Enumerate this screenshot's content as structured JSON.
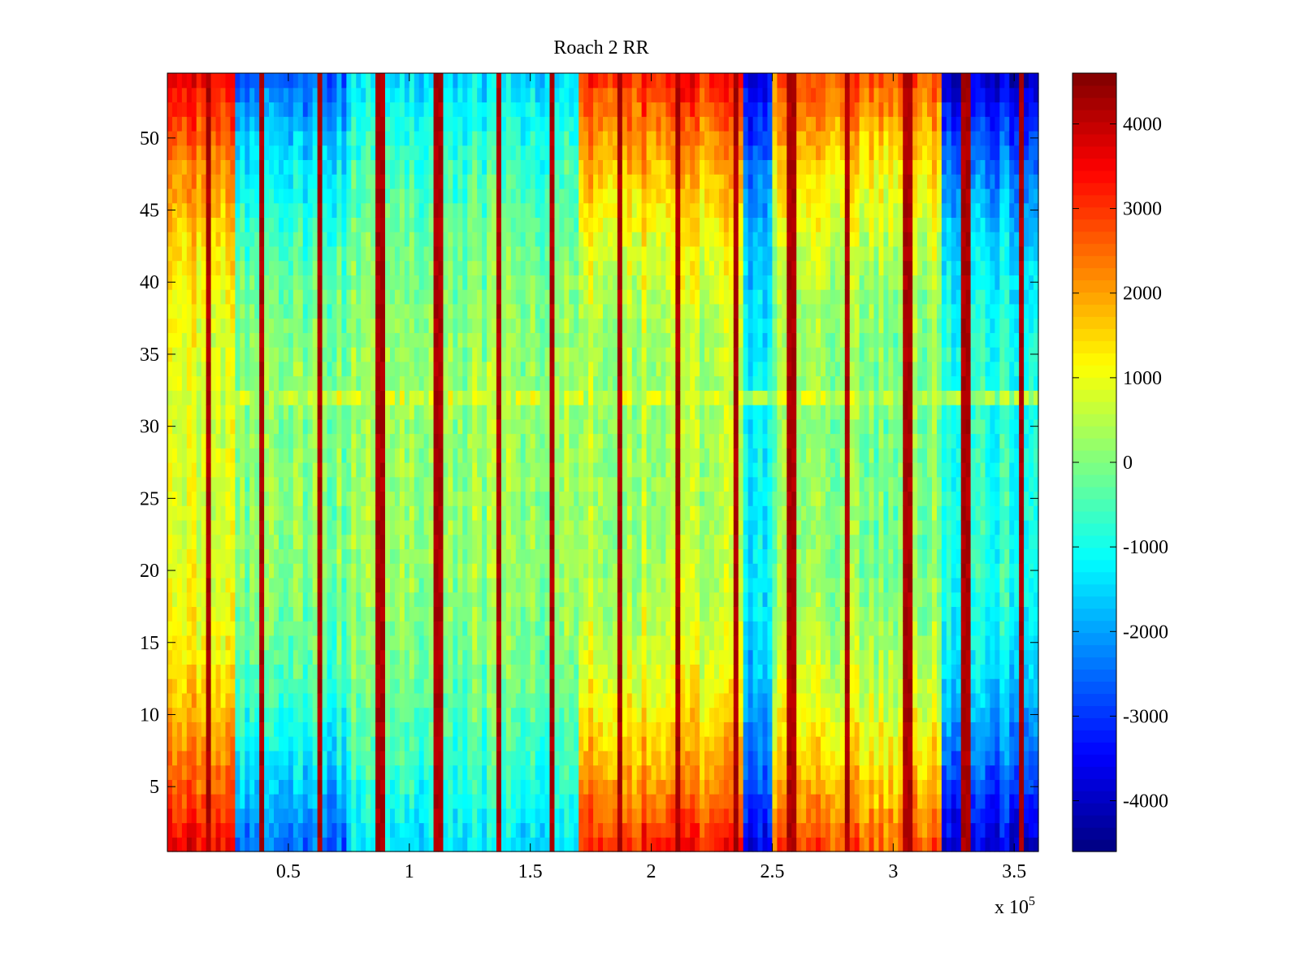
{
  "chart_data": {
    "type": "heatmap",
    "title": "Roach 2 RR",
    "xlabel": "",
    "ylabel": "",
    "x_multiplier_label": {
      "base": "x 10",
      "exponent": "5"
    },
    "xlim": [
      0,
      3.6
    ],
    "ylim": [
      0.5,
      54.5
    ],
    "x_ticks": [
      0.5,
      1,
      1.5,
      2,
      2.5,
      3,
      3.5
    ],
    "x_tick_labels": [
      "0.5",
      "1",
      "1.5",
      "2",
      "2.5",
      "3",
      "3.5"
    ],
    "y_ticks": [
      5,
      10,
      15,
      20,
      25,
      30,
      35,
      40,
      45,
      50
    ],
    "y_tick_labels": [
      "5",
      "10",
      "15",
      "20",
      "25",
      "30",
      "35",
      "40",
      "45",
      "50"
    ],
    "colorbar": {
      "colormap": "jet",
      "clim": [
        -4600,
        4600
      ],
      "ticks": [
        -4000,
        -3000,
        -2000,
        -1000,
        0,
        1000,
        2000,
        3000,
        4000
      ],
      "tick_labels": [
        "-4000",
        "-3000",
        "-2000",
        "-1000",
        "0",
        "1000",
        "2000",
        "3000",
        "4000"
      ]
    },
    "rows": 54,
    "column_segments": [
      {
        "x_range": [
          0,
          0.28
        ],
        "edge_rows_value": 3600,
        "mid_rows_value": 900
      },
      {
        "x_range": [
          0.28,
          0.75
        ],
        "edge_rows_value": -2600,
        "mid_rows_value": 0
      },
      {
        "x_range": [
          0.75,
          1.7
        ],
        "edge_rows_value": -1400,
        "mid_rows_value": 200
      },
      {
        "x_range": [
          1.7,
          2.38
        ],
        "edge_rows_value": 3200,
        "mid_rows_value": 400
      },
      {
        "x_range": [
          2.38,
          2.5
        ],
        "edge_rows_value": -3600,
        "mid_rows_value": -1200
      },
      {
        "x_range": [
          2.5,
          3.2
        ],
        "edge_rows_value": 2600,
        "mid_rows_value": 0
      },
      {
        "x_range": [
          3.2,
          3.6
        ],
        "edge_rows_value": -3800,
        "mid_rows_value": -800
      }
    ],
    "spike_columns_x": [
      0.17,
      0.39,
      0.63,
      0.88,
      1.12,
      1.37,
      1.59,
      1.87,
      2.11,
      2.35,
      2.58,
      2.81,
      3.06,
      3.3,
      3.53
    ],
    "spike_value": 4200,
    "special_row": {
      "row": 32,
      "value": 1500
    }
  }
}
